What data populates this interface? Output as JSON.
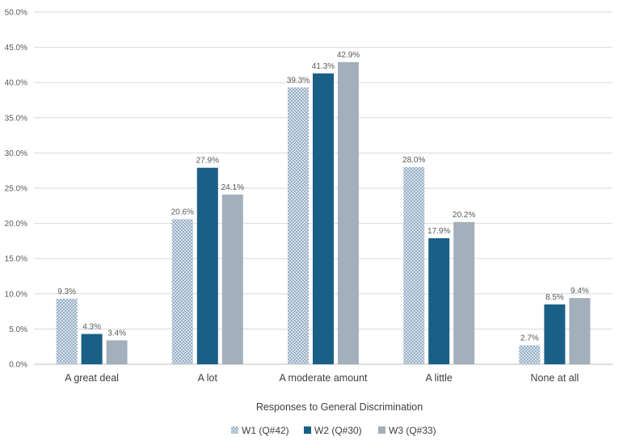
{
  "chart_data": {
    "type": "bar",
    "title": "",
    "xlabel": "Responses to General Discrimination",
    "ylabel": "",
    "ylim": [
      0,
      50
    ],
    "yticks": [
      "0.0%",
      "5.0%",
      "10.0%",
      "15.0%",
      "20.0%",
      "25.0%",
      "30.0%",
      "35.0%",
      "40.0%",
      "45.0%",
      "50.0%"
    ],
    "categories": [
      "A great deal",
      "A lot",
      "A moderate amount",
      "A little",
      "None at all"
    ],
    "series": [
      {
        "name": "W1 (Q#42)",
        "values": [
          9.3,
          20.6,
          39.3,
          28.0,
          2.7
        ],
        "labels": [
          "9.3%",
          "20.6%",
          "39.3%",
          "28.0%",
          "2.7%"
        ],
        "color": "#b4c7d7",
        "pattern": "dotted"
      },
      {
        "name": "W2 (Q#30)",
        "values": [
          4.3,
          27.9,
          41.3,
          17.9,
          8.5
        ],
        "labels": [
          "4.3%",
          "27.9%",
          "41.3%",
          "17.9%",
          "8.5%"
        ],
        "color": "#1a5f86",
        "pattern": "solid"
      },
      {
        "name": "W3 (Q#33)",
        "values": [
          3.4,
          24.1,
          42.9,
          20.2,
          9.4
        ],
        "labels": [
          "3.4%",
          "24.1%",
          "42.9%",
          "20.2%",
          "9.4%"
        ],
        "color": "#a3b0bb",
        "pattern": "solid"
      }
    ],
    "legend_position": "bottom",
    "grid": true
  }
}
